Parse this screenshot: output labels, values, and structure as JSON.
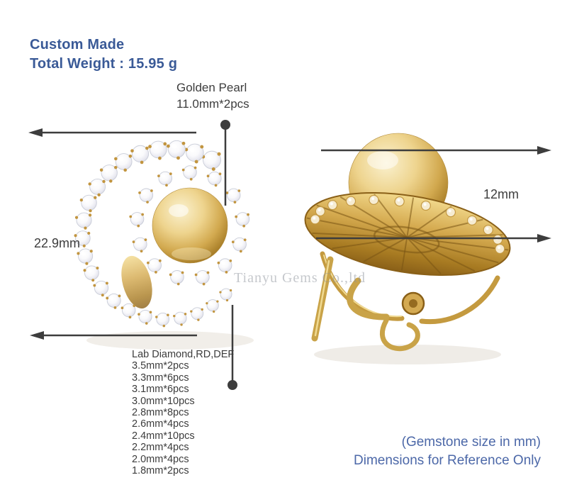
{
  "header": {
    "line1": "Custom Made",
    "line2": "Total Weight : 15.95 g"
  },
  "pearl_callout": {
    "line1": "Golden Pearl",
    "line2": "11.0mm*2pcs"
  },
  "dimensions": {
    "left_height": "22.9mm",
    "right_depth": "12mm"
  },
  "spec": {
    "title": "Lab Diamond,RD,DEF",
    "items": [
      "3.5mm*2pcs",
      "3.3mm*6pcs",
      "3.1mm*6pcs",
      "3.0mm*10pcs",
      "2.8mm*8pcs",
      "2.6mm*4pcs",
      "2.4mm*10pcs",
      "2.2mm*4pcs",
      "2.0mm*4pcs",
      "1.8mm*2pcs"
    ]
  },
  "footer": {
    "line1": "(Gemstone size in mm)",
    "line2": "Dimensions for Reference Only"
  },
  "watermark": "Tianyu Gems Co.,ltd",
  "colors": {
    "heading_blue": "#3a5a97",
    "footer_blue": "#4c68a8",
    "annotation_gray": "#3d3d3d",
    "gold": "#c9a348",
    "pearl_gold": "#d2a94f"
  }
}
